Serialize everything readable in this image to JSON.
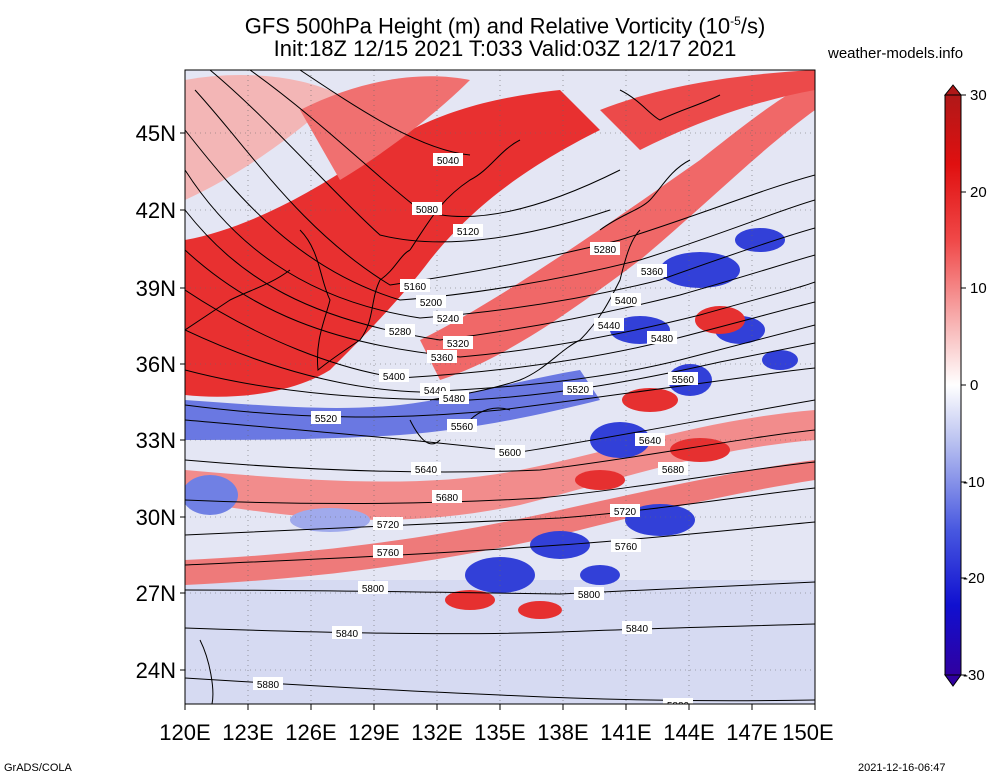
{
  "title": {
    "line1_pre": "GFS 500hPa Height (m) and Relative Vorticity (10",
    "line1_exp": "-5",
    "line1_post": "/s)",
    "line2": "Init:18Z 12/15 2021 T:033 Valid:03Z 12/17 2021"
  },
  "source": "weather-models.info",
  "footer": {
    "software": "GrADS/COLA",
    "timestamp": "2021-12-16-06:47"
  },
  "map": {
    "lon_labels": [
      "120E",
      "123E",
      "126E",
      "129E",
      "132E",
      "135E",
      "138E",
      "141E",
      "144E",
      "147E",
      "150E"
    ],
    "lat_labels": [
      "45N",
      "42N",
      "39N",
      "36N",
      "33N",
      "30N",
      "27N",
      "24N"
    ],
    "lon_range": [
      120,
      150
    ],
    "lat_range": [
      22.5,
      47.5
    ],
    "contour_labels": [
      "5040",
      "5080",
      "5120",
      "5160",
      "5200",
      "5240",
      "5280",
      "5320",
      "5360",
      "5400",
      "5440",
      "5480",
      "5520",
      "5560",
      "5600",
      "5640",
      "5680",
      "5720",
      "5760",
      "5800",
      "5840",
      "5880"
    ]
  },
  "colorbar": {
    "labels": [
      "30",
      "20",
      "10",
      "0",
      "-10",
      "-20",
      "-30"
    ],
    "colors_top_to_bottom": [
      "#b01818",
      "#e01010",
      "#f06060",
      "#f8b8b8",
      "#ffffff",
      "#b8c0f0",
      "#6070e0",
      "#1010d8",
      "#3000a0"
    ]
  }
}
